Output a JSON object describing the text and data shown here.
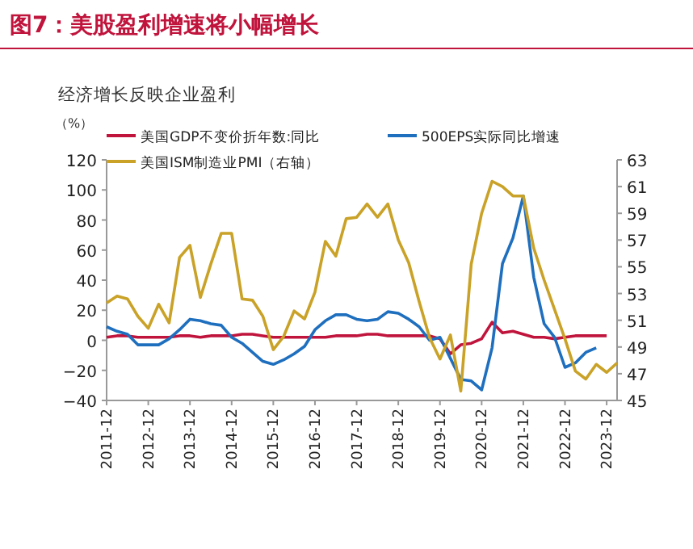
{
  "chart_data": {
    "type": "line",
    "title": "图7：美股盈利增速将小幅增长",
    "subtitle": "经济增长反映企业盈利",
    "ylabel": "（%）",
    "categories": [
      "2011-12",
      null,
      null,
      null,
      "2012-12",
      null,
      null,
      null,
      "2013-12",
      null,
      null,
      null,
      "2014-12",
      null,
      null,
      null,
      "2015-12",
      null,
      null,
      null,
      "2016-12",
      null,
      null,
      null,
      "2017-12",
      null,
      null,
      null,
      "2018-12",
      null,
      null,
      null,
      "2019-12",
      null,
      null,
      null,
      "2020-12",
      null,
      null,
      null,
      "2021-12",
      null,
      null,
      null,
      "2022-12",
      null,
      null,
      null,
      "2023-12",
      null
    ],
    "series": [
      {
        "name": "美国GDP不变价折年数:同比",
        "color": "#c0143c",
        "values": [
          2,
          3,
          3,
          2,
          2,
          2,
          2,
          3,
          3,
          2,
          3,
          3,
          3,
          4,
          4,
          3,
          2,
          2,
          2,
          2,
          2,
          2,
          3,
          3,
          3,
          4,
          4,
          3,
          3,
          3,
          3,
          3,
          1,
          -9,
          -3,
          -2,
          1,
          12,
          5,
          6,
          4,
          2,
          2,
          1,
          2,
          3,
          3,
          3,
          3,
          null
        ]
      },
      {
        "name": "500EPS实际同比增速",
        "color": "#1f6fbf",
        "values": [
          9,
          6,
          4,
          -3,
          -3,
          -3,
          1,
          7,
          14,
          13,
          11,
          10,
          2,
          -2,
          -8,
          -14,
          -16,
          -13,
          -9,
          -4,
          7,
          13,
          17,
          17,
          14,
          13,
          14,
          19,
          18,
          14,
          9,
          0,
          2,
          -12,
          -26,
          -27,
          -33,
          -5,
          51,
          68,
          96,
          42,
          11,
          2,
          -18,
          -15,
          -8,
          -5,
          null,
          null
        ]
      },
      {
        "name": "美国ISM制造业PMI（右轴）",
        "color": "#c9a227",
        "axis": "y2",
        "values": [
          52.3,
          52.8,
          52.6,
          51.3,
          50.4,
          52.2,
          50.8,
          55.7,
          56.6,
          52.7,
          55.2,
          57.5,
          57.5,
          52.6,
          52.5,
          51.3,
          48.8,
          49.8,
          51.7,
          51.1,
          53.1,
          56.9,
          55.8,
          58.6,
          58.7,
          59.7,
          58.7,
          59.7,
          57.0,
          55.3,
          52.4,
          49.7,
          48.1,
          49.9,
          45.7,
          55.2,
          59.0,
          61.4,
          61.0,
          60.3,
          60.3,
          56.4,
          54.0,
          51.8,
          49.6,
          47.2,
          46.6,
          47.7,
          47.1,
          47.8
        ]
      }
    ],
    "ylim": [
      -40,
      120
    ],
    "yticks": [
      -40,
      -20,
      0,
      20,
      40,
      60,
      80,
      100,
      120
    ],
    "y2lim": [
      45,
      63
    ],
    "y2ticks": [
      45,
      47,
      49,
      51,
      53,
      55,
      57,
      59,
      61,
      63
    ],
    "legend": "top",
    "marker": "none",
    "line_style": "solid"
  }
}
